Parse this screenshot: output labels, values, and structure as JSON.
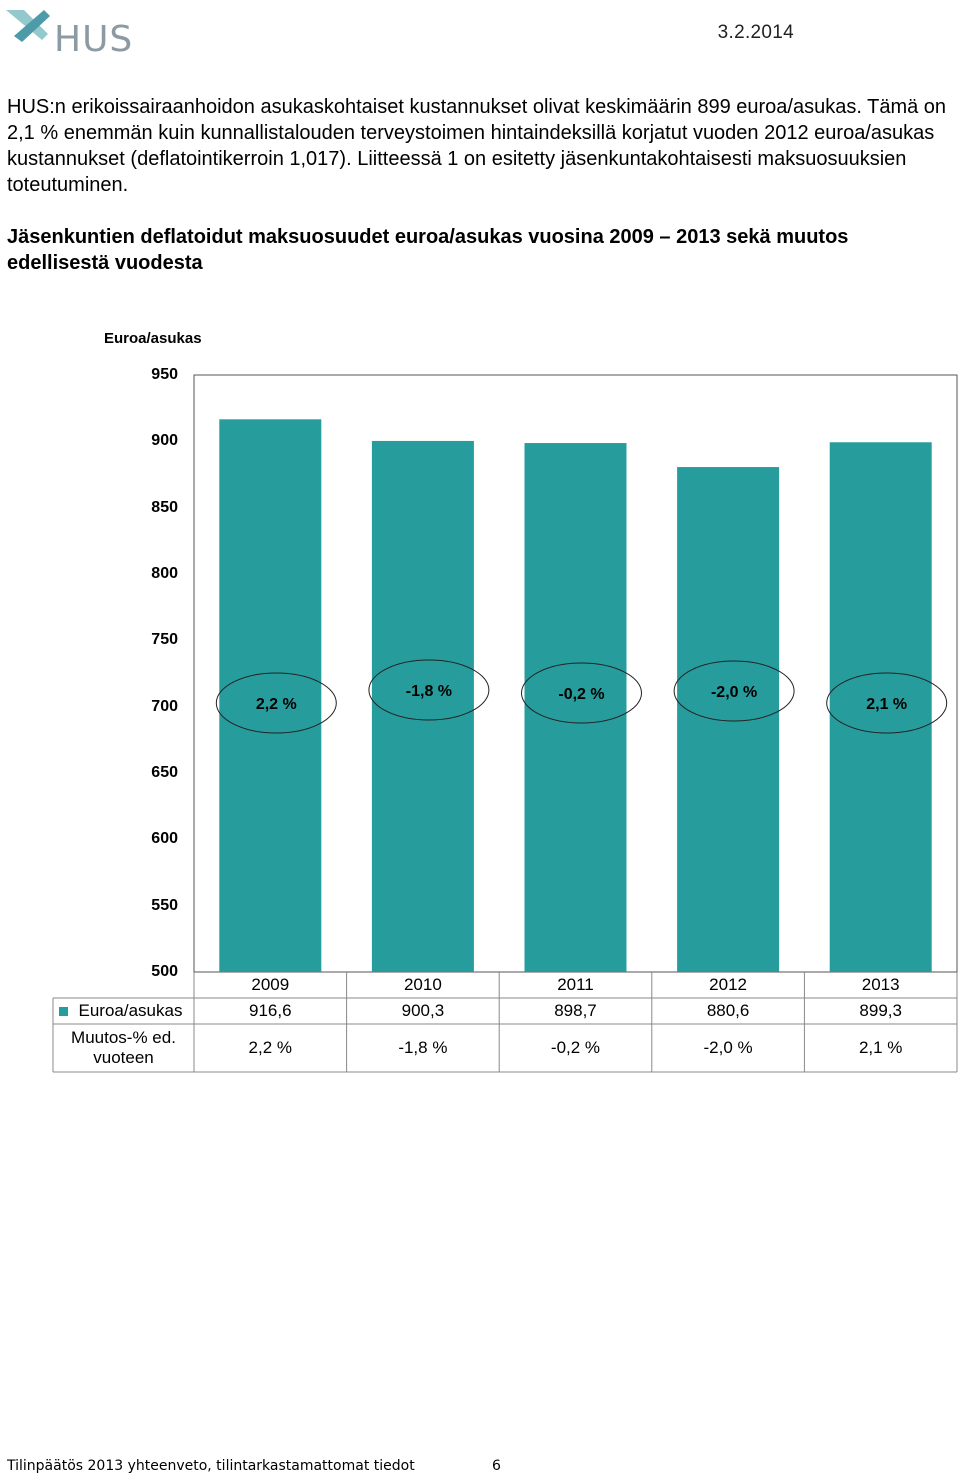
{
  "header": {
    "logo_text": "HUS",
    "date": "3.2.2014"
  },
  "intro": {
    "text": "HUS:n erikoissairaanhoidon asukaskohtaiset kustannukset olivat keskimäärin 899 euroa/asukas. Tämä on 2,1 % enemmän kuin kunnallistalouden terveystoimen hintaindeksillä korjatut vuoden 2012 euroa/asukas kustannukset (deflatointikerroin 1,017). Liitteessä 1 on esitetty jäsenkuntakohtaisesti maksuosuuksien toteutuminen."
  },
  "figure_heading": "Jäsenkuntien deflatoidut maksuosuudet euroa/asukas vuosina 2009 – 2013 sekä muutos edellisestä vuodesta",
  "chart_data": {
    "type": "bar",
    "ylabel": "Euroa/asukas",
    "ylim": [
      500,
      950
    ],
    "yticks": [
      "950",
      "900",
      "850",
      "800",
      "750",
      "700",
      "650",
      "600",
      "550",
      "500"
    ],
    "categories": [
      "2009",
      "2010",
      "2011",
      "2012",
      "2013"
    ],
    "series": [
      {
        "name": "Euroa/asukas",
        "values": [
          916.6,
          900.3,
          898.7,
          880.6,
          899.3
        ],
        "labels": [
          "916,6",
          "900,3",
          "898,7",
          "880,6",
          "899,3"
        ],
        "color": "#279c9c"
      }
    ],
    "annotations": [
      "2,2 %",
      "-1,8 %",
      "-0,2 %",
      "-2,0 %",
      "2,1 %"
    ],
    "table": {
      "row_label_values": "Euroa/asukas",
      "row_label_change": "Muutos-% ed. vuoteen",
      "change": [
        "2,2 %",
        "-1,8 %",
        "-0,2 %",
        "-2,0 %",
        "2,1 %"
      ]
    },
    "grid": false,
    "legend": "data-table"
  },
  "footer": {
    "text": "Tilinpäätös 2013 yhteenveto, tilintarkastamattomat tiedot",
    "page": "6"
  }
}
